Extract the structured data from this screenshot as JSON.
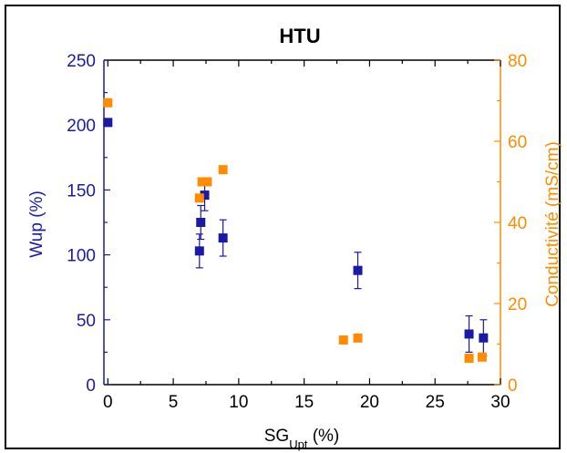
{
  "chart_data": {
    "type": "scatter",
    "title": "HTU",
    "xlabel": "SG",
    "xlabel_sub": "Upt",
    "xlabel_unit": " (%)",
    "ylabel": "Wup (%)",
    "y2label": "Conductivité (mS/cm)",
    "xlim": [
      -0.3,
      30
    ],
    "ylim": [
      0,
      250
    ],
    "y2lim": [
      0,
      80
    ],
    "xticks": [
      0,
      5,
      10,
      15,
      20,
      25,
      30
    ],
    "yticks": [
      0,
      50,
      100,
      150,
      200,
      250
    ],
    "y2ticks": [
      0,
      20,
      40,
      60,
      80
    ],
    "colors": {
      "wup": "#1a1aa6",
      "conductivity": "#ff8c00",
      "axis_left": "#1a1aa6",
      "axis_right": "#ff8c00"
    },
    "series": [
      {
        "axis": "left",
        "marker": "square",
        "points": [
          {
            "x": 0,
            "y": 202,
            "err": 0
          },
          {
            "x": 7.0,
            "y": 103,
            "err": 13
          },
          {
            "x": 7.1,
            "y": 125,
            "err": 13
          },
          {
            "x": 7.4,
            "y": 146,
            "err": 12
          },
          {
            "x": 8.8,
            "y": 113,
            "err": 14
          },
          {
            "x": 19.1,
            "y": 88,
            "err": 14
          },
          {
            "x": 27.6,
            "y": 39,
            "err": 14
          },
          {
            "x": 28.7,
            "y": 36,
            "err": 14
          }
        ]
      },
      {
        "axis": "right",
        "marker": "square",
        "points": [
          {
            "x": 0,
            "y": 69.5
          },
          {
            "x": 7.0,
            "y": 46
          },
          {
            "x": 7.2,
            "y": 50
          },
          {
            "x": 7.6,
            "y": 50
          },
          {
            "x": 8.8,
            "y": 53
          },
          {
            "x": 18.0,
            "y": 11
          },
          {
            "x": 19.1,
            "y": 11.5
          },
          {
            "x": 27.6,
            "y": 6.5
          },
          {
            "x": 28.6,
            "y": 6.8
          }
        ]
      }
    ]
  }
}
